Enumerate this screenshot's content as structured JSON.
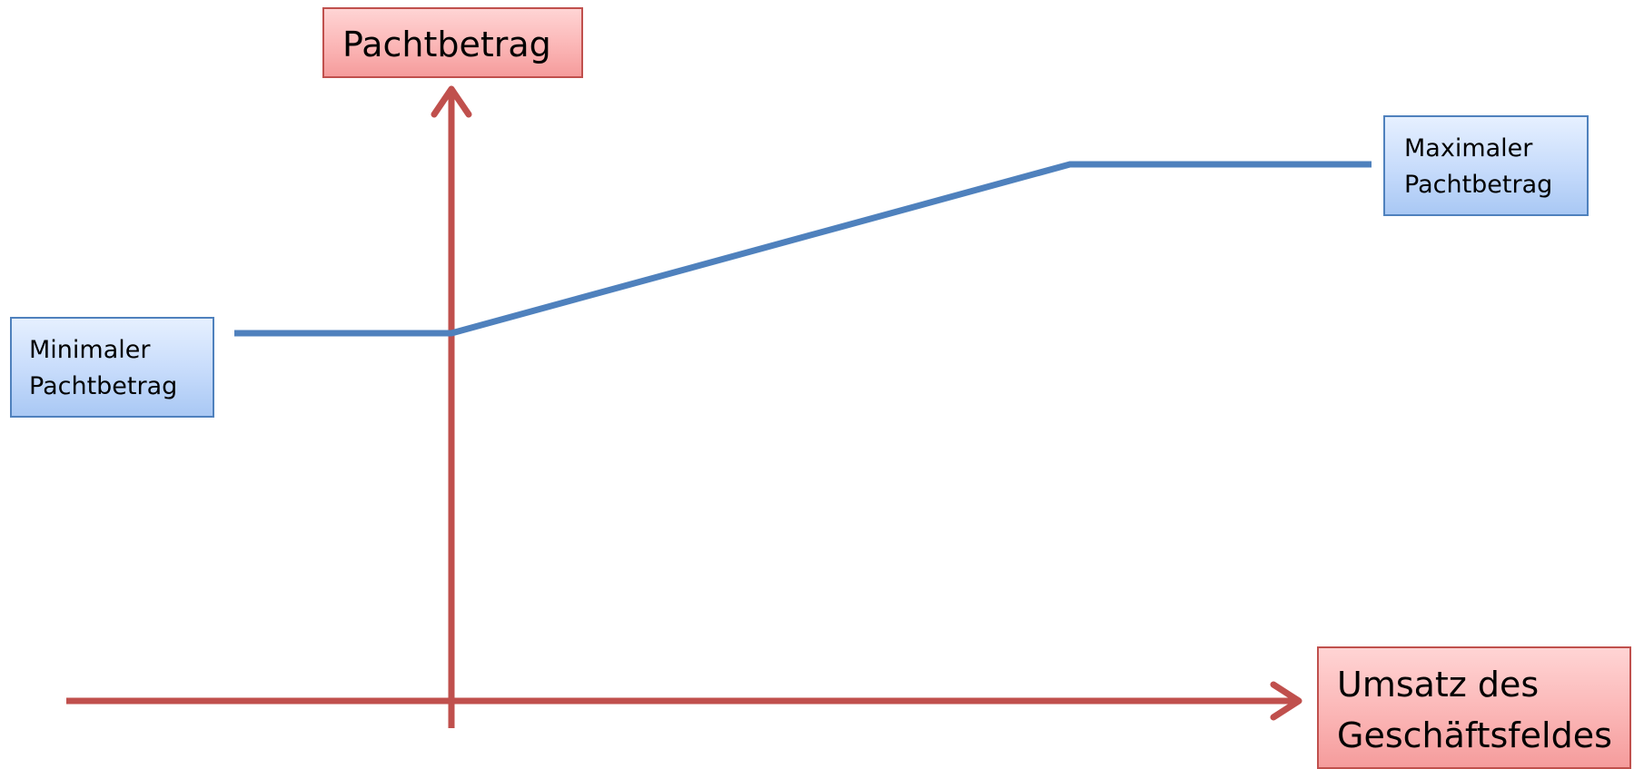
{
  "axes": {
    "y_label": "Pachtbetrag",
    "x_label_line1": "Umsatz des",
    "x_label_line2": "Geschäftsfeldes"
  },
  "labels": {
    "min_line1": "Minimaler",
    "min_line2": "Pachtbetrag",
    "max_line1": "Maximaler",
    "max_line2": "Pachtbetrag"
  },
  "colors": {
    "axis": "#c0504d",
    "curve": "#4f81bd",
    "label_box_red_border": "#c0504d",
    "label_box_blue_border": "#4f81bd"
  }
}
